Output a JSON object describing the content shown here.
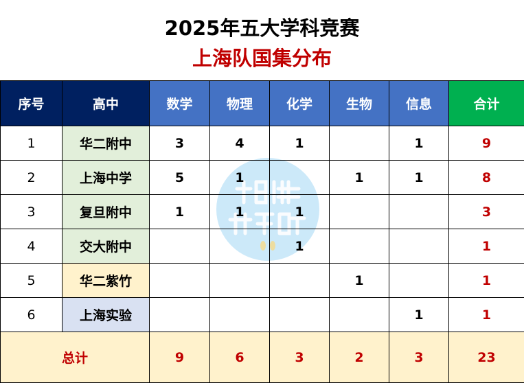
{
  "title": "2025年五大学科竞赛",
  "subtitle": "上海队国集分布",
  "colors": {
    "header_dark": "#002060",
    "header_blue": "#4472c4",
    "header_total": "#00b050",
    "total_text": "#c00000",
    "footer_bg": "#fff2cc"
  },
  "headers": [
    "序号",
    "高中",
    "数学",
    "物理",
    "化学",
    "生物",
    "信息",
    "合计"
  ],
  "rows": [
    {
      "idx": "1",
      "school": "华二附中",
      "bg": "#e2efda",
      "math": "3",
      "physics": "4",
      "chemistry": "1",
      "biology": "",
      "informatics": "1",
      "total": "9"
    },
    {
      "idx": "2",
      "school": "上海中学",
      "bg": "#e2efda",
      "math": "5",
      "physics": "1",
      "chemistry": "",
      "biology": "1",
      "informatics": "1",
      "total": "8"
    },
    {
      "idx": "3",
      "school": "复旦附中",
      "bg": "#e2efda",
      "math": "1",
      "physics": "1",
      "chemistry": "1",
      "biology": "",
      "informatics": "",
      "total": "3"
    },
    {
      "idx": "4",
      "school": "交大附中",
      "bg": "#e2efda",
      "math": "",
      "physics": "",
      "chemistry": "1",
      "biology": "",
      "informatics": "",
      "total": "1"
    },
    {
      "idx": "5",
      "school": "华二紫竹",
      "bg": "#fff2cc",
      "math": "",
      "physics": "",
      "chemistry": "",
      "biology": "1",
      "informatics": "",
      "total": "1"
    },
    {
      "idx": "6",
      "school": "上海实验",
      "bg": "#d9e1f2",
      "math": "",
      "physics": "",
      "chemistry": "",
      "biology": "",
      "informatics": "1",
      "total": "1"
    }
  ],
  "footer": {
    "label": "总计",
    "math": "9",
    "physics": "6",
    "chemistry": "3",
    "biology": "2",
    "informatics": "3",
    "total": "23"
  },
  "watermark": {
    "line1": "相伴",
    "line2": "升学路"
  }
}
